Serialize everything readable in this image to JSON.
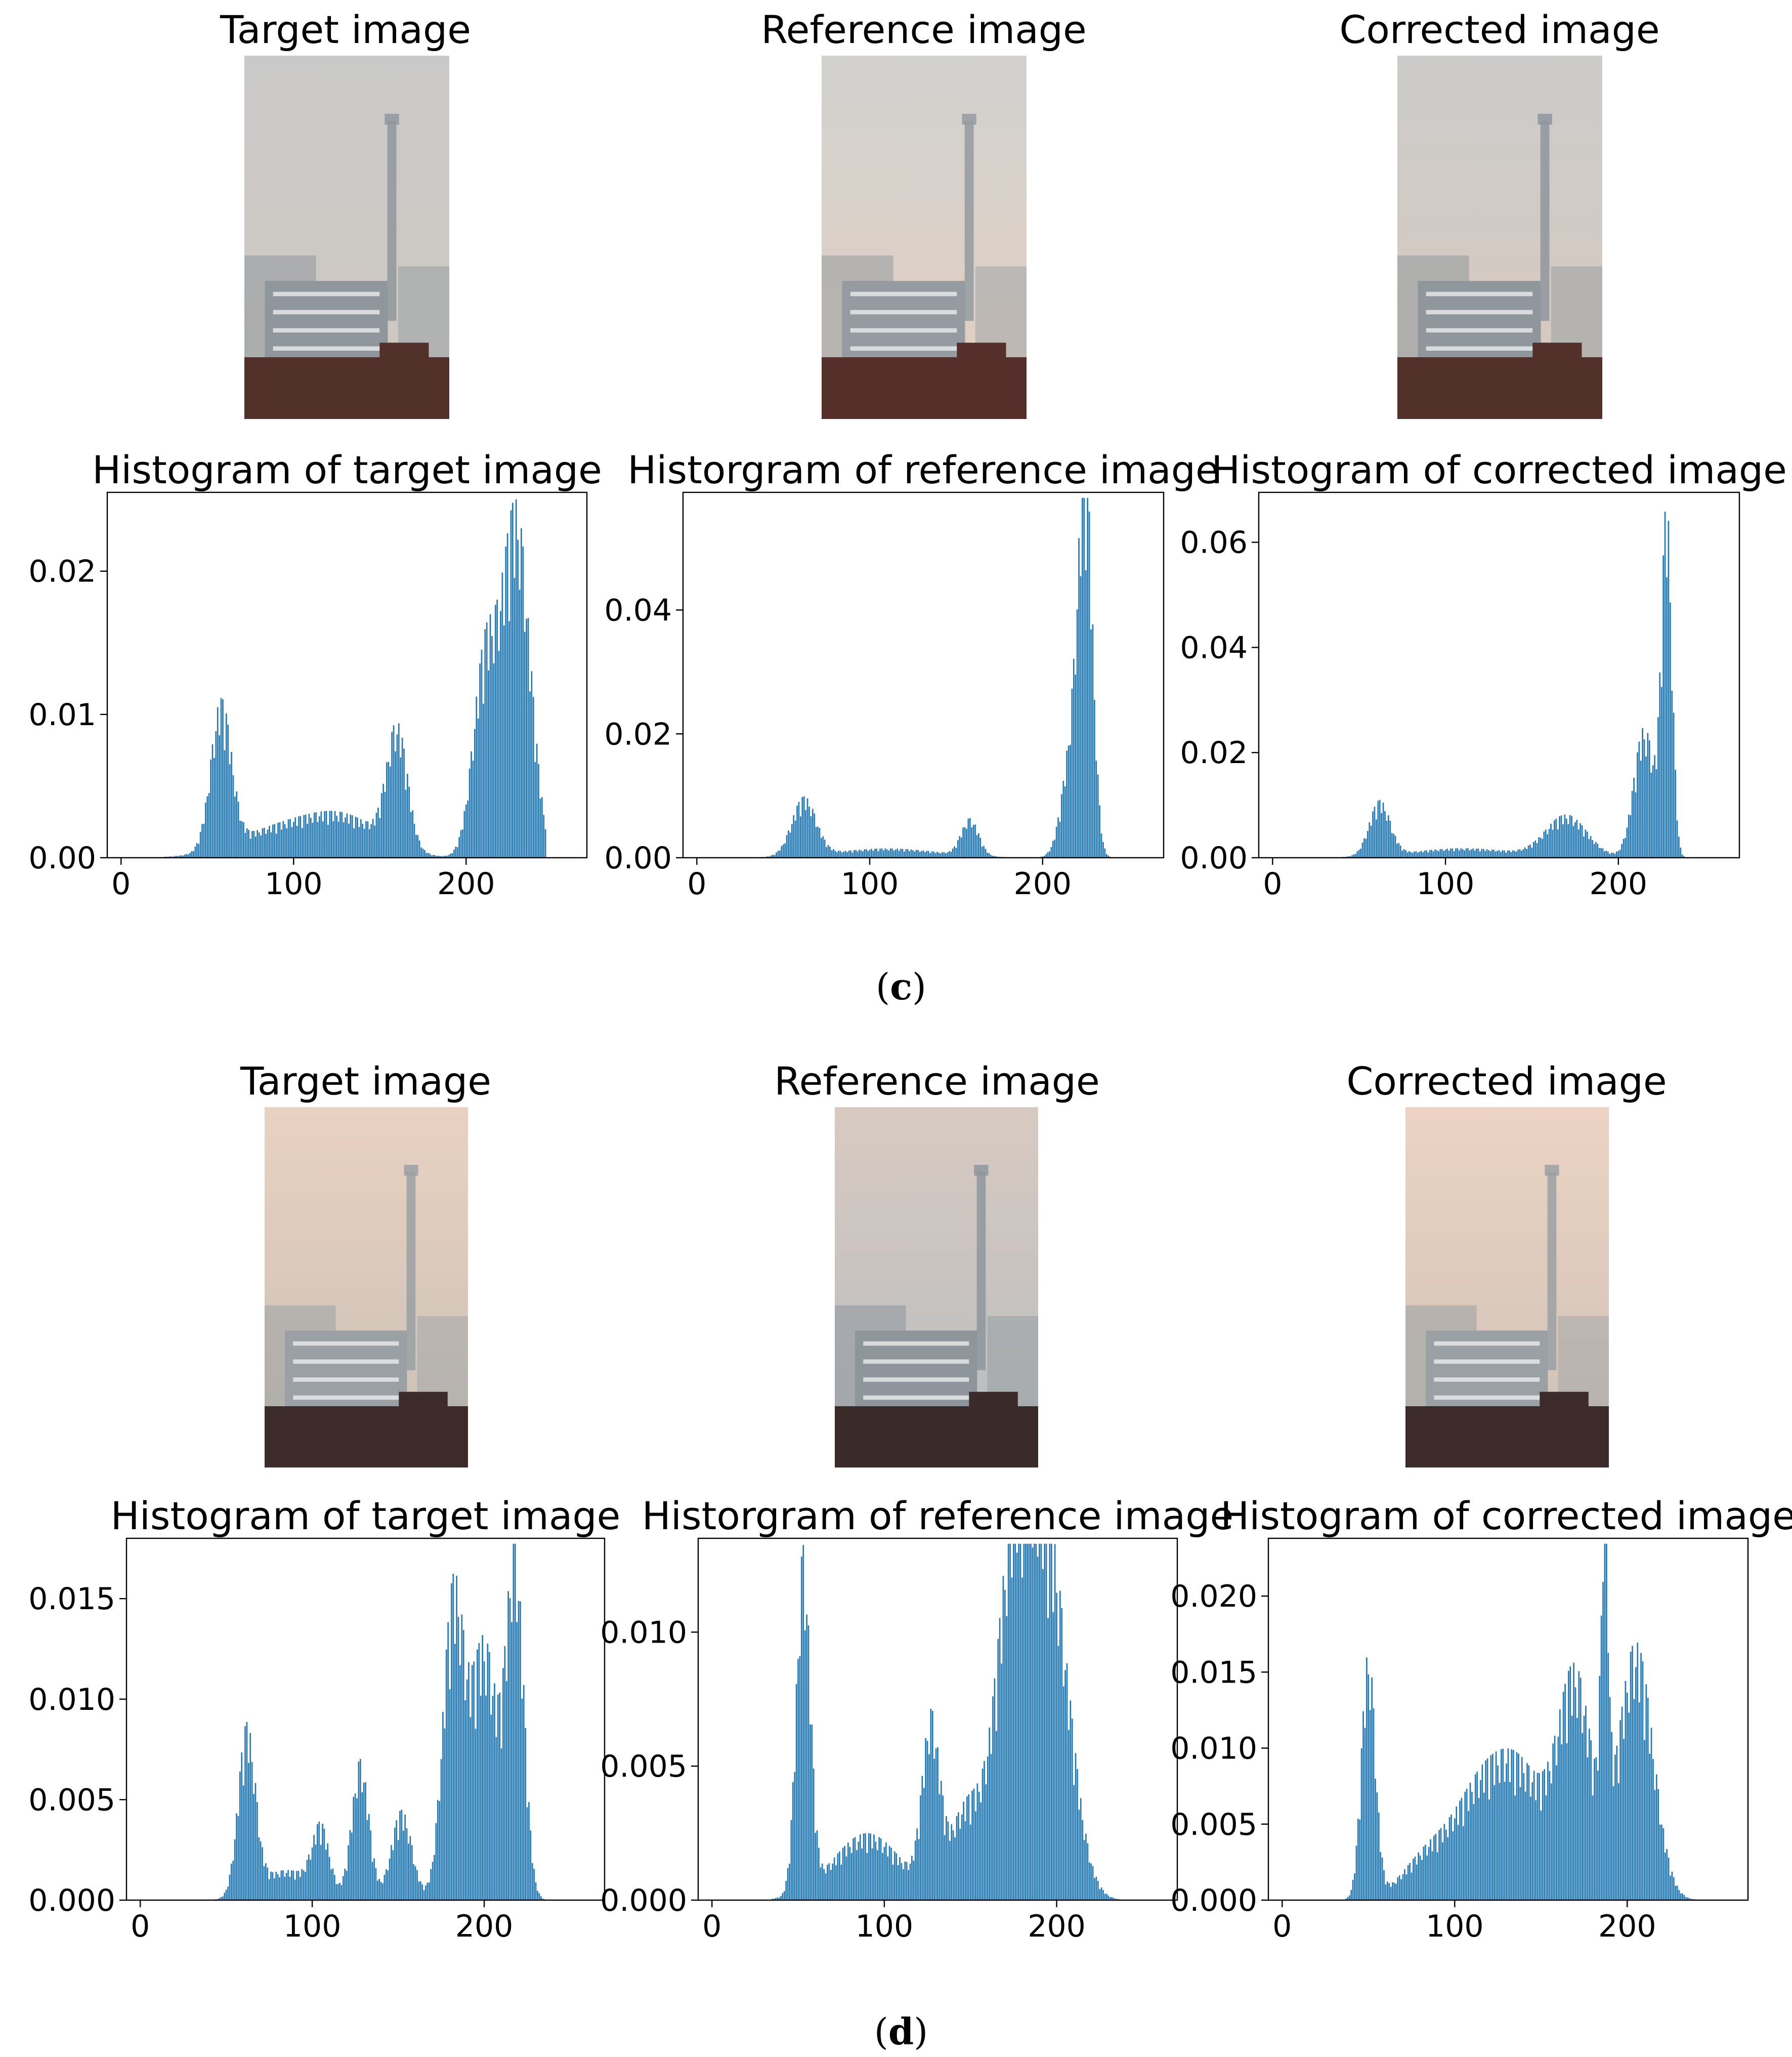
{
  "bar_color": "#1f77b4",
  "panel_labels": {
    "c": {
      "open": "(",
      "letter": "c",
      "close": ")"
    },
    "d": {
      "open": "(",
      "letter": "d",
      "close": ")"
    }
  },
  "image_titles": {
    "c": [
      "Target image",
      "Reference image",
      "Corrected image"
    ],
    "d": [
      "Target image",
      "Reference image",
      "Corrected image"
    ]
  },
  "photos": {
    "c": [
      {
        "sky_top": "#c9c9c9",
        "sky_bottom": "#cfc8bf",
        "building": "#8f979d",
        "base": "#53312b"
      },
      {
        "sky_top": "#d1d1cf",
        "sky_bottom": "#e3d0c1",
        "building": "#959ba0",
        "base": "#55302a"
      },
      {
        "sky_top": "#cbcbcb",
        "sky_bottom": "#d8cabc",
        "building": "#8f979d",
        "base": "#53312b"
      }
    ],
    "d": [
      {
        "sky_top": "#e9d1c1",
        "sky_bottom": "#c9c0b7",
        "building": "#9aa0a3",
        "base": "#3d2b2b"
      },
      {
        "sky_top": "#d8cac1",
        "sky_bottom": "#b7bcc0",
        "building": "#8e969c",
        "base": "#3a2a2a"
      },
      {
        "sky_top": "#ecd3c3",
        "sky_bottom": "#cdc1b6",
        "building": "#9aa0a3",
        "base": "#3d2b2b"
      }
    ]
  },
  "chart_data": [
    {
      "id": "c-target",
      "type": "bar",
      "title": "Histogram of target image",
      "xlim": [
        -8,
        270
      ],
      "ylim": [
        0,
        0.0255
      ],
      "xticks": [
        0,
        100,
        200
      ],
      "xtick_labels": [
        "0",
        "100",
        "200"
      ],
      "yticks": [
        0,
        0.01,
        0.02
      ],
      "ytick_labels": [
        "0.00",
        "0.01",
        "0.02"
      ],
      "peaks": [
        {
          "x": 58,
          "y": 0.0103,
          "w": 6
        },
        {
          "x": 90,
          "y": 0.0019,
          "w": 25
        },
        {
          "x": 130,
          "y": 0.0026,
          "w": 22
        },
        {
          "x": 160,
          "y": 0.0085,
          "w": 6
        },
        {
          "x": 211,
          "y": 0.014,
          "w": 7
        },
        {
          "x": 229,
          "y": 0.0245,
          "w": 8
        }
      ],
      "range": [
        25,
        246
      ]
    },
    {
      "id": "c-reference",
      "type": "bar",
      "title": "Historgram of reference image",
      "xlim": [
        -8,
        270
      ],
      "ylim": [
        0,
        0.059
      ],
      "xticks": [
        0,
        100,
        200
      ],
      "xtick_labels": [
        "0",
        "100",
        "200"
      ],
      "yticks": [
        0,
        0.02,
        0.04
      ],
      "ytick_labels": [
        "0.00",
        "0.02",
        "0.04"
      ],
      "peaks": [
        {
          "x": 62,
          "y": 0.0095,
          "w": 7
        },
        {
          "x": 110,
          "y": 0.0015,
          "w": 30
        },
        {
          "x": 158,
          "y": 0.006,
          "w": 5
        },
        {
          "x": 218,
          "y": 0.02,
          "w": 6
        },
        {
          "x": 225,
          "y": 0.056,
          "w": 4
        }
      ],
      "range": [
        25,
        246
      ]
    },
    {
      "id": "c-corrected",
      "type": "bar",
      "title": "Histogram of corrected image",
      "xlim": [
        -8,
        270
      ],
      "ylim": [
        0,
        0.0695
      ],
      "xticks": [
        0,
        100,
        200
      ],
      "xtick_labels": [
        "0",
        "100",
        "200"
      ],
      "yticks": [
        0,
        0.02,
        0.04,
        0.06
      ],
      "ytick_labels": [
        "0.00",
        "0.02",
        "0.04",
        "0.06"
      ],
      "peaks": [
        {
          "x": 62,
          "y": 0.0105,
          "w": 6
        },
        {
          "x": 110,
          "y": 0.0018,
          "w": 30
        },
        {
          "x": 170,
          "y": 0.008,
          "w": 12
        },
        {
          "x": 215,
          "y": 0.025,
          "w": 6
        },
        {
          "x": 228,
          "y": 0.066,
          "w": 3
        }
      ],
      "range": [
        35,
        250
      ]
    },
    {
      "id": "d-target",
      "type": "bar",
      "title": "Histogram of target image",
      "xlim": [
        -8,
        270
      ],
      "ylim": [
        0,
        0.018
      ],
      "xticks": [
        0,
        100,
        200
      ],
      "xtick_labels": [
        "0",
        "100",
        "200"
      ],
      "yticks": [
        0,
        0.005,
        0.01,
        0.015
      ],
      "ytick_labels": [
        "0.000",
        "0.005",
        "0.010",
        "0.015"
      ],
      "peaks": [
        {
          "x": 62,
          "y": 0.0084,
          "w": 5
        },
        {
          "x": 85,
          "y": 0.0015,
          "w": 15
        },
        {
          "x": 105,
          "y": 0.0033,
          "w": 5
        },
        {
          "x": 128,
          "y": 0.007,
          "w": 5
        },
        {
          "x": 152,
          "y": 0.0045,
          "w": 6
        },
        {
          "x": 182,
          "y": 0.0152,
          "w": 6
        },
        {
          "x": 200,
          "y": 0.013,
          "w": 8
        },
        {
          "x": 218,
          "y": 0.0173,
          "w": 5
        }
      ],
      "range": [
        40,
        245
      ]
    },
    {
      "id": "d-reference",
      "type": "bar",
      "title": "Historgram of reference image",
      "xlim": [
        -8,
        270
      ],
      "ylim": [
        0,
        0.0135
      ],
      "xticks": [
        0,
        100,
        200
      ],
      "xtick_labels": [
        "0",
        "100",
        "200"
      ],
      "yticks": [
        0,
        0.005,
        0.01
      ],
      "ytick_labels": [
        "0.000",
        "0.005",
        "0.010"
      ],
      "peaks": [
        {
          "x": 53,
          "y": 0.0128,
          "w": 4
        },
        {
          "x": 90,
          "y": 0.0025,
          "w": 20
        },
        {
          "x": 127,
          "y": 0.0063,
          "w": 5
        },
        {
          "x": 148,
          "y": 0.0035,
          "w": 10
        },
        {
          "x": 175,
          "y": 0.0125,
          "w": 10
        },
        {
          "x": 195,
          "y": 0.0133,
          "w": 12
        }
      ],
      "range": [
        35,
        240
      ]
    },
    {
      "id": "d-corrected",
      "type": "bar",
      "title": "Histogram of corrected image",
      "xlim": [
        -8,
        270
      ],
      "ylim": [
        0,
        0.0238
      ],
      "xticks": [
        0,
        100,
        200
      ],
      "xtick_labels": [
        "0",
        "100",
        "200"
      ],
      "yticks": [
        0,
        0.005,
        0.01,
        0.015,
        0.02
      ],
      "ytick_labels": [
        "0.000",
        "0.005",
        "0.010",
        "0.015",
        "0.020"
      ],
      "peaks": [
        {
          "x": 50,
          "y": 0.0163,
          "w": 4
        },
        {
          "x": 85,
          "y": 0.003,
          "w": 15
        },
        {
          "x": 115,
          "y": 0.0065,
          "w": 15
        },
        {
          "x": 140,
          "y": 0.0075,
          "w": 15
        },
        {
          "x": 170,
          "y": 0.0145,
          "w": 10
        },
        {
          "x": 187,
          "y": 0.0226,
          "w": 2
        },
        {
          "x": 205,
          "y": 0.017,
          "w": 10
        }
      ],
      "range": [
        35,
        240
      ]
    }
  ]
}
